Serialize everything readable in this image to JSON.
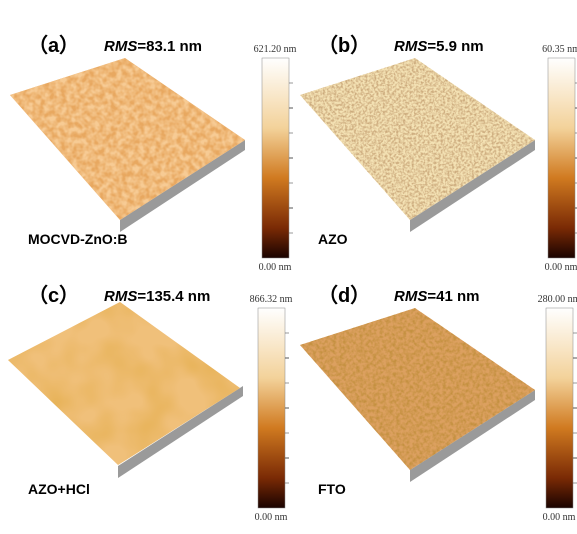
{
  "panels": [
    {
      "label": "（a）",
      "rms_label": "RMS",
      "rms_value": "=83.1 nm",
      "sample": "MOCVD-ZnO:B",
      "scale_top": "621.20 nm",
      "scale_bottom": "0.00 nm"
    },
    {
      "label": "（b）",
      "rms_label": "RMS",
      "rms_value": "=5.9 nm",
      "sample": "AZO",
      "scale_top": "60.35 nm",
      "scale_bottom": "0.00 nm"
    },
    {
      "label": "（c）",
      "rms_label": "RMS",
      "rms_value": "=135.4 nm",
      "sample": "AZO+HCl",
      "scale_top": "866.32 nm",
      "scale_bottom": "0.00 nm"
    },
    {
      "label": "（d）",
      "rms_label": "RMS",
      "rms_value": "=41 nm",
      "sample": "FTO",
      "scale_top": "280.00 nm",
      "scale_bottom": "0.00 nm"
    }
  ]
}
